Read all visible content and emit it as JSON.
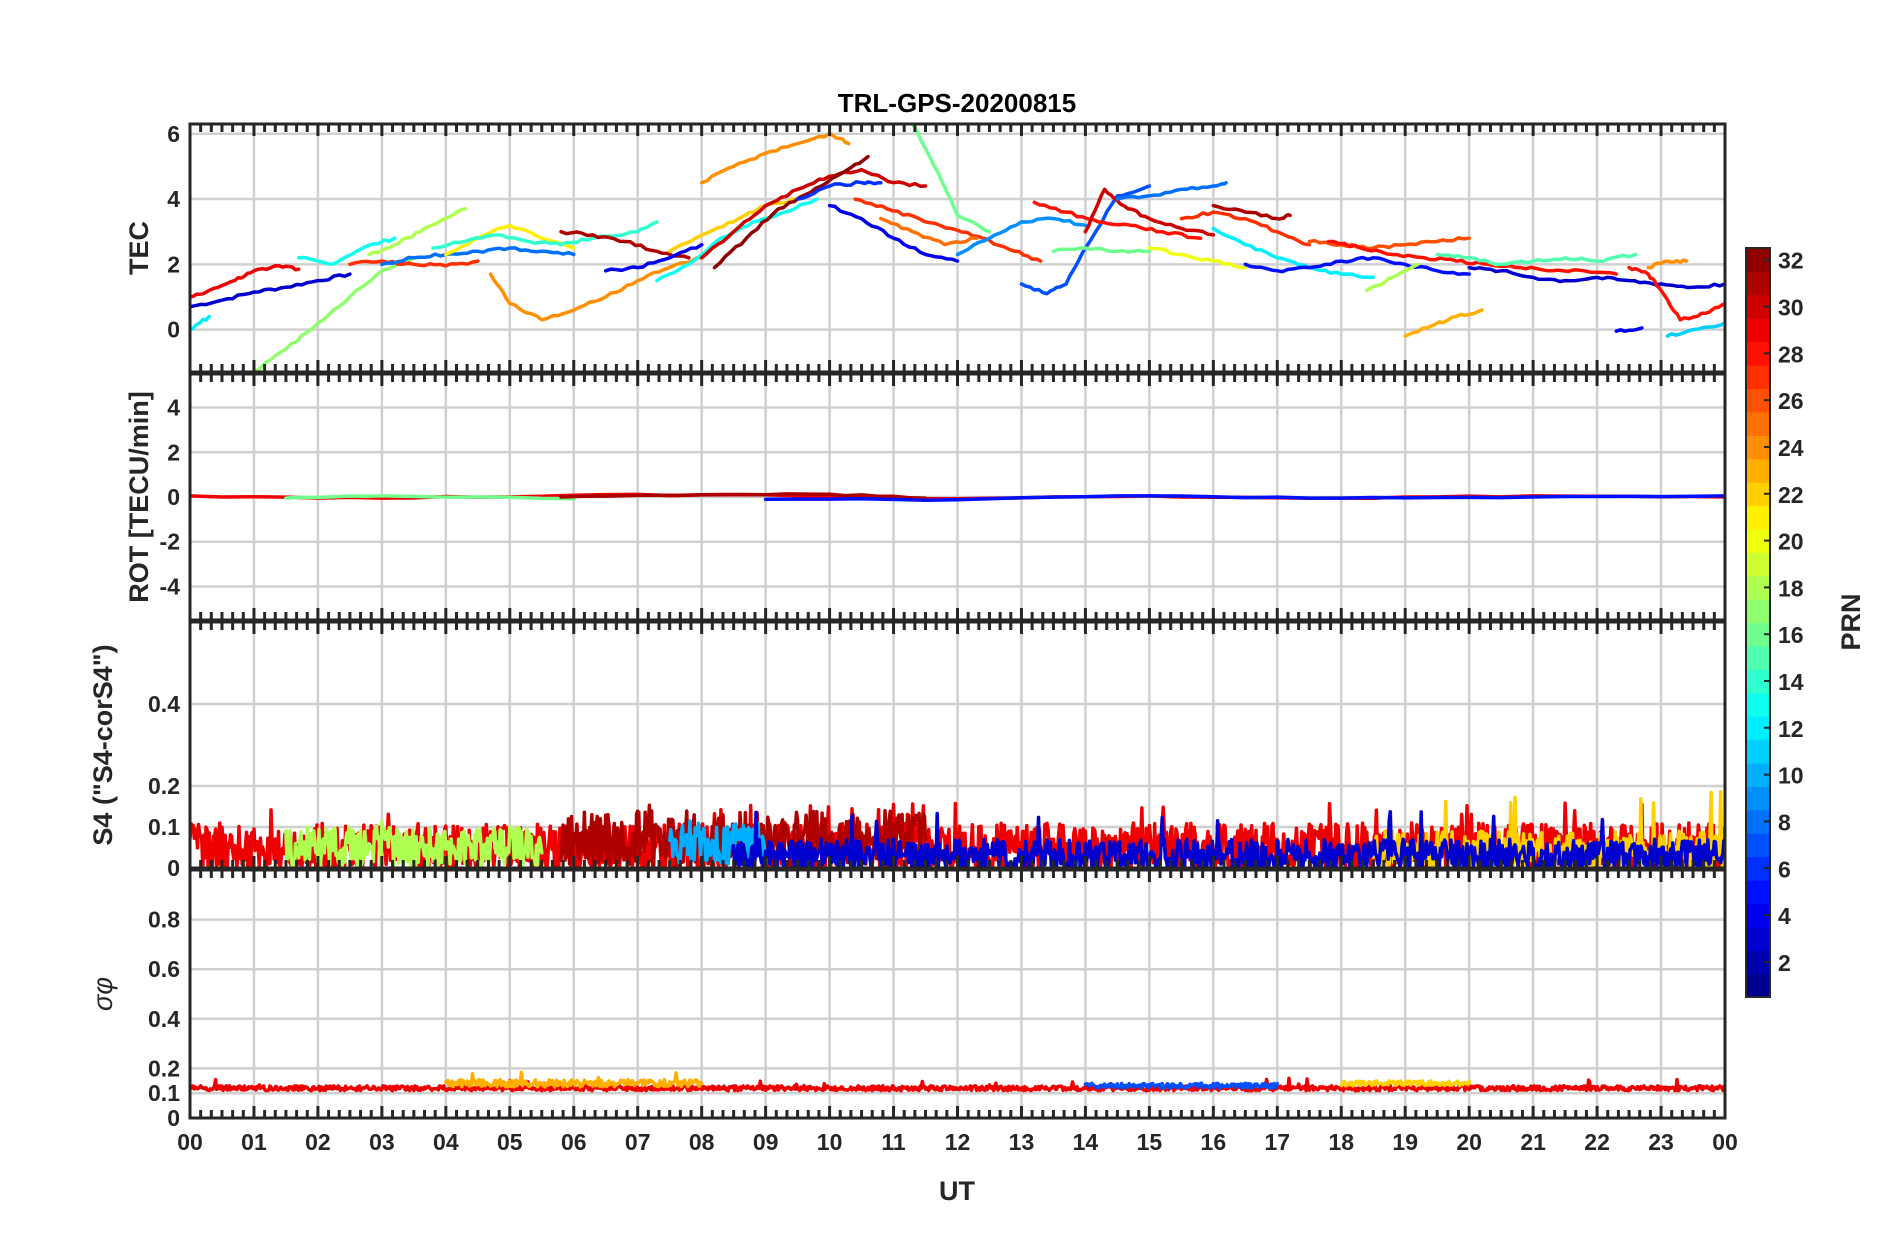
{
  "chart_data": {
    "type": "line",
    "title": "TRL-GPS-20200815",
    "xlabel": "UT",
    "x_ticks": [
      "00",
      "01",
      "02",
      "03",
      "04",
      "05",
      "06",
      "07",
      "08",
      "09",
      "10",
      "11",
      "12",
      "13",
      "14",
      "15",
      "16",
      "17",
      "18",
      "19",
      "20",
      "21",
      "22",
      "23",
      "00"
    ],
    "xlim": [
      0,
      24
    ],
    "colorbar": {
      "label": "PRN",
      "range": [
        1,
        32
      ],
      "ticks": [
        "2",
        "4",
        "6",
        "8",
        "10",
        "12",
        "14",
        "16",
        "18",
        "20",
        "22",
        "24",
        "26",
        "28",
        "30",
        "32"
      ],
      "colormap": "jet"
    },
    "panels": [
      {
        "name": "tec",
        "ylabel": "TEC",
        "ylim": [
          -1.3,
          6.3
        ],
        "y_ticks": [
          0,
          2,
          4,
          6
        ],
        "y_tick_labels": [
          "0",
          "2",
          "4",
          "6"
        ],
        "series": [
          {
            "prn": 3,
            "x": [
              0.0,
              0.5,
              1.0,
              1.5,
              2.0,
              2.5
            ],
            "y": [
              0.7,
              0.9,
              1.15,
              1.3,
              1.5,
              1.7
            ]
          },
          {
            "prn": 29,
            "x": [
              0.0,
              0.3,
              0.7,
              1.0,
              1.4,
              1.7
            ],
            "y": [
              1.0,
              1.2,
              1.5,
              1.8,
              1.95,
              1.85
            ]
          },
          {
            "prn": 12,
            "x": [
              0.0,
              0.3
            ],
            "y": [
              0.0,
              0.4
            ]
          },
          {
            "prn": 17,
            "x": [
              1.0,
              1.5,
              2.0,
              2.5,
              3.0,
              3.5
            ],
            "y": [
              -1.3,
              -0.6,
              0.2,
              1.0,
              1.8,
              2.2
            ]
          },
          {
            "prn": 13,
            "x": [
              1.7,
              2.2,
              2.7,
              3.2
            ],
            "y": [
              2.2,
              2.0,
              2.5,
              2.8
            ]
          },
          {
            "prn": 27,
            "x": [
              2.5,
              3.0,
              3.5,
              4.0,
              4.5
            ],
            "y": [
              2.0,
              2.1,
              2.0,
              1.95,
              2.1
            ]
          },
          {
            "prn": 18,
            "x": [
              2.8,
              3.2,
              3.6,
              4.0,
              4.3
            ],
            "y": [
              2.3,
              2.6,
              3.0,
              3.4,
              3.7
            ]
          },
          {
            "prn": 8,
            "x": [
              3.0,
              3.5,
              4.0,
              4.5,
              5.0,
              5.5,
              6.0
            ],
            "y": [
              2.0,
              2.2,
              2.3,
              2.4,
              2.5,
              2.4,
              2.3
            ]
          },
          {
            "prn": 21,
            "x": [
              4.0,
              4.5,
              5.0,
              5.5,
              6.0
            ],
            "y": [
              2.3,
              2.8,
              3.2,
              2.8,
              2.5
            ]
          },
          {
            "prn": 14,
            "x": [
              3.8,
              4.3,
              4.8,
              5.3,
              5.8,
              6.3,
              7.0,
              7.3
            ],
            "y": [
              2.5,
              2.7,
              2.9,
              2.7,
              2.6,
              2.8,
              3.0,
              3.3
            ]
          },
          {
            "prn": 24,
            "x": [
              4.7,
              5.0,
              5.5,
              6.0,
              6.5,
              7.0,
              7.5,
              8.0
            ],
            "y": [
              1.7,
              0.8,
              0.3,
              0.6,
              1.0,
              1.5,
              1.9,
              2.2
            ]
          },
          {
            "prn": 31,
            "x": [
              5.8,
              6.3,
              6.8,
              7.3,
              7.8
            ],
            "y": [
              3.0,
              2.9,
              2.7,
              2.4,
              2.2
            ]
          },
          {
            "prn": 4,
            "x": [
              6.5,
              7.0,
              7.5,
              8.0
            ],
            "y": [
              1.8,
              1.9,
              2.2,
              2.6
            ]
          },
          {
            "prn": 13,
            "x": [
              7.3,
              7.8,
              8.3,
              8.8,
              9.3,
              9.8
            ],
            "y": [
              1.5,
              2.0,
              2.8,
              3.3,
              3.6,
              4.0
            ]
          },
          {
            "prn": 22,
            "x": [
              7.5,
              8.0,
              8.5,
              9.0,
              9.5
            ],
            "y": [
              2.4,
              2.9,
              3.3,
              3.8,
              4.0
            ]
          },
          {
            "prn": 30,
            "x": [
              8.0,
              8.5,
              9.0,
              9.5,
              10.0,
              10.5,
              11.0,
              11.5
            ],
            "y": [
              2.2,
              3.0,
              3.8,
              4.3,
              4.7,
              4.9,
              4.5,
              4.4
            ]
          },
          {
            "prn": 32,
            "x": [
              8.2,
              8.7,
              9.2,
              9.7,
              10.2,
              10.6
            ],
            "y": [
              1.9,
              2.8,
              3.7,
              4.2,
              4.8,
              5.3
            ]
          },
          {
            "prn": 24,
            "x": [
              8.0,
              8.5,
              9.0,
              9.5,
              10.0,
              10.3
            ],
            "y": [
              4.5,
              5.0,
              5.4,
              5.7,
              6.0,
              5.7
            ]
          },
          {
            "prn": 6,
            "x": [
              9.5,
              10.0,
              10.5,
              10.8
            ],
            "y": [
              4.0,
              4.4,
              4.5,
              4.5
            ]
          },
          {
            "prn": 4,
            "x": [
              10.0,
              10.5,
              11.0,
              11.5,
              12.0
            ],
            "y": [
              3.8,
              3.4,
              2.8,
              2.3,
              2.1
            ]
          },
          {
            "prn": 16,
            "x": [
              11.3,
              11.7,
              12.0,
              12.5
            ],
            "y": [
              6.3,
              4.8,
              3.5,
              3.0
            ]
          },
          {
            "prn": 27,
            "x": [
              10.4,
              10.9,
              11.4,
              11.9,
              12.4,
              12.9,
              13.3
            ],
            "y": [
              4.0,
              3.7,
              3.4,
              3.1,
              2.8,
              2.4,
              2.1
            ]
          },
          {
            "prn": 25,
            "x": [
              10.8,
              11.3,
              11.8,
              12.3
            ],
            "y": [
              3.4,
              3.0,
              2.6,
              2.8
            ]
          },
          {
            "prn": 9,
            "x": [
              12.0,
              12.5,
              13.0,
              13.5,
              14.0
            ],
            "y": [
              2.3,
              2.8,
              3.3,
              3.4,
              3.2
            ]
          },
          {
            "prn": 7,
            "x": [
              13.0,
              13.4,
              13.7,
              14.0,
              14.5,
              15.0
            ],
            "y": [
              1.4,
              1.1,
              1.4,
              2.5,
              4.1,
              4.4
            ]
          },
          {
            "prn": 28,
            "x": [
              13.2,
              13.7,
              14.2,
              14.7,
              15.2,
              15.8
            ],
            "y": [
              3.9,
              3.6,
              3.3,
              3.2,
              3.0,
              2.8
            ]
          },
          {
            "prn": 30,
            "x": [
              14.0,
              14.3,
              14.6,
              15.0,
              15.5,
              16.0
            ],
            "y": [
              3.0,
              4.3,
              3.8,
              3.4,
              3.1,
              2.9
            ]
          },
          {
            "prn": 16,
            "x": [
              13.5,
              14.0,
              14.5,
              15.0
            ],
            "y": [
              2.4,
              2.5,
              2.4,
              2.4
            ]
          },
          {
            "prn": 8,
            "x": [
              14.5,
              15.0,
              15.5,
              16.0,
              16.2
            ],
            "y": [
              4.0,
              4.1,
              4.3,
              4.4,
              4.5
            ]
          },
          {
            "prn": 20,
            "x": [
              15.0,
              15.5,
              16.0,
              16.5
            ],
            "y": [
              2.5,
              2.3,
              2.1,
              1.9
            ]
          },
          {
            "prn": 27,
            "x": [
              15.5,
              16.0,
              16.5,
              17.0,
              17.5
            ],
            "y": [
              3.4,
              3.6,
              3.4,
              3.0,
              2.6
            ]
          },
          {
            "prn": 31,
            "x": [
              16.0,
              16.5,
              17.0,
              17.2
            ],
            "y": [
              3.8,
              3.6,
              3.4,
              3.5
            ]
          },
          {
            "prn": 12,
            "x": [
              16.0,
              16.5,
              17.0,
              17.5,
              18.0,
              18.5
            ],
            "y": [
              3.1,
              2.6,
              2.2,
              1.9,
              1.7,
              1.6
            ]
          },
          {
            "prn": 5,
            "x": [
              16.5,
              17.0,
              17.5,
              18.0,
              18.5,
              19.0,
              19.5,
              20.0
            ],
            "y": [
              2.0,
              1.8,
              1.9,
              2.1,
              2.2,
              2.0,
              1.8,
              1.7
            ]
          },
          {
            "prn": 26,
            "x": [
              17.5,
              18.0,
              18.5,
              19.0,
              19.5,
              20.0
            ],
            "y": [
              2.7,
              2.6,
              2.5,
              2.6,
              2.7,
              2.8
            ]
          },
          {
            "prn": 28,
            "x": [
              17.8,
              18.3,
              18.8,
              19.3,
              19.8,
              20.3,
              20.8,
              21.3,
              21.8,
              22.3
            ],
            "y": [
              2.7,
              2.5,
              2.3,
              2.2,
              2.1,
              2.0,
              1.9,
              1.8,
              1.8,
              1.7
            ]
          },
          {
            "prn": 18,
            "x": [
              18.4,
              18.8,
              19.2
            ],
            "y": [
              1.2,
              1.6,
              2.0
            ]
          },
          {
            "prn": 23,
            "x": [
              19.0,
              19.4,
              19.8,
              20.2
            ],
            "y": [
              -0.2,
              0.1,
              0.4,
              0.6
            ]
          },
          {
            "prn": 15,
            "x": [
              19.5,
              20.0,
              20.5,
              21.0,
              21.5,
              22.0,
              22.6
            ],
            "y": [
              2.3,
              2.2,
              2.0,
              2.1,
              2.2,
              2.1,
              2.3
            ]
          },
          {
            "prn": 3,
            "x": [
              20.0,
              20.5,
              21.0,
              21.5,
              22.0,
              22.5,
              23.0,
              23.5,
              24.0
            ],
            "y": [
              1.9,
              1.8,
              1.6,
              1.5,
              1.6,
              1.5,
              1.4,
              1.3,
              1.4
            ]
          },
          {
            "prn": 28,
            "x": [
              22.5,
              22.8,
              23.0,
              23.3,
              23.7,
              24.0
            ],
            "y": [
              1.9,
              1.7,
              1.2,
              0.3,
              0.5,
              0.8
            ]
          },
          {
            "prn": 24,
            "x": [
              22.8,
              23.1,
              23.4
            ],
            "y": [
              1.9,
              2.1,
              2.1
            ]
          },
          {
            "prn": 11,
            "x": [
              23.1,
              23.5,
              24.0
            ],
            "y": [
              -0.2,
              0.0,
              0.2
            ]
          },
          {
            "prn": 4,
            "x": [
              22.3,
              22.7
            ],
            "y": [
              -0.05,
              0.05
            ]
          }
        ]
      },
      {
        "name": "rot",
        "ylabel": "ROT [TECU/min]",
        "ylim": [
          -5.5,
          5.5
        ],
        "y_ticks": [
          -4,
          -2,
          0,
          2,
          4
        ],
        "y_tick_labels": [
          "-4",
          "-2",
          "0",
          "2",
          "4"
        ],
        "series": [
          {
            "prn": 29,
            "x": [
              0,
              3,
              6,
              9,
              12,
              15,
              18,
              21,
              24
            ],
            "y": [
              0.05,
              -0.05,
              0.08,
              0.1,
              -0.08,
              0.05,
              -0.05,
              0.05,
              0.0
            ]
          },
          {
            "prn": 16,
            "x": [
              1.5,
              3,
              6
            ],
            "y": [
              -0.05,
              0.05,
              -0.08
            ]
          },
          {
            "prn": 31,
            "x": [
              5.8,
              8,
              10,
              11.5
            ],
            "y": [
              0.0,
              0.1,
              0.12,
              -0.05
            ]
          },
          {
            "prn": 5,
            "x": [
              9,
              12,
              15,
              18,
              21,
              24
            ],
            "y": [
              -0.1,
              -0.12,
              0.05,
              -0.05,
              0.0,
              0.05
            ]
          }
        ]
      },
      {
        "name": "s4",
        "ylabel": "S4 (\"S4-corS4\")",
        "ylim": [
          0,
          0.6
        ],
        "y_ticks": [
          0,
          0.1,
          0.2,
          0.4
        ],
        "y_tick_labels": [
          "0",
          "0.1",
          "0.2",
          "0.4"
        ],
        "series": [
          {
            "prn": 29,
            "band": [
              0.0,
              24.0
            ],
            "mean": 0.05,
            "amp": 0.06,
            "peak": 0.16
          },
          {
            "prn": 18,
            "band": [
              1.5,
              5.5
            ],
            "mean": 0.05,
            "amp": 0.05,
            "peak": 0.12
          },
          {
            "prn": 31,
            "band": [
              5.8,
              11.5
            ],
            "mean": 0.07,
            "amp": 0.07,
            "peak": 0.16
          },
          {
            "prn": 22,
            "band": [
              18.5,
              24.0
            ],
            "mean": 0.04,
            "amp": 0.05,
            "peak": 0.19
          },
          {
            "prn": 10,
            "band": [
              7.5,
              9.0
            ],
            "mean": 0.06,
            "amp": 0.05,
            "peak": 0.12
          },
          {
            "prn": 3,
            "band": [
              8.5,
              24.0
            ],
            "mean": 0.03,
            "amp": 0.04,
            "peak": 0.14
          }
        ]
      },
      {
        "name": "sigma_phi",
        "ylabel": "σφ",
        "ylim": [
          0,
          1.0
        ],
        "y_ticks": [
          0,
          0.1,
          0.2,
          0.4,
          0.6,
          0.8
        ],
        "y_tick_labels": [
          "0",
          "0.1",
          "0.2",
          "0.4",
          "0.6",
          "0.8"
        ],
        "series": [
          {
            "prn": 29,
            "band": [
              0.0,
              24.0
            ],
            "mean": 0.12,
            "amp": 0.01,
            "peak": 0.16
          },
          {
            "prn": 23,
            "band": [
              4.0,
              8.0
            ],
            "mean": 0.14,
            "amp": 0.015,
            "peak": 0.19
          },
          {
            "prn": 7,
            "band": [
              14.0,
              17.0
            ],
            "mean": 0.13,
            "amp": 0.01,
            "peak": 0.14
          },
          {
            "prn": 22,
            "band": [
              18.0,
              20.0
            ],
            "mean": 0.14,
            "amp": 0.01,
            "peak": 0.15
          }
        ]
      }
    ]
  }
}
